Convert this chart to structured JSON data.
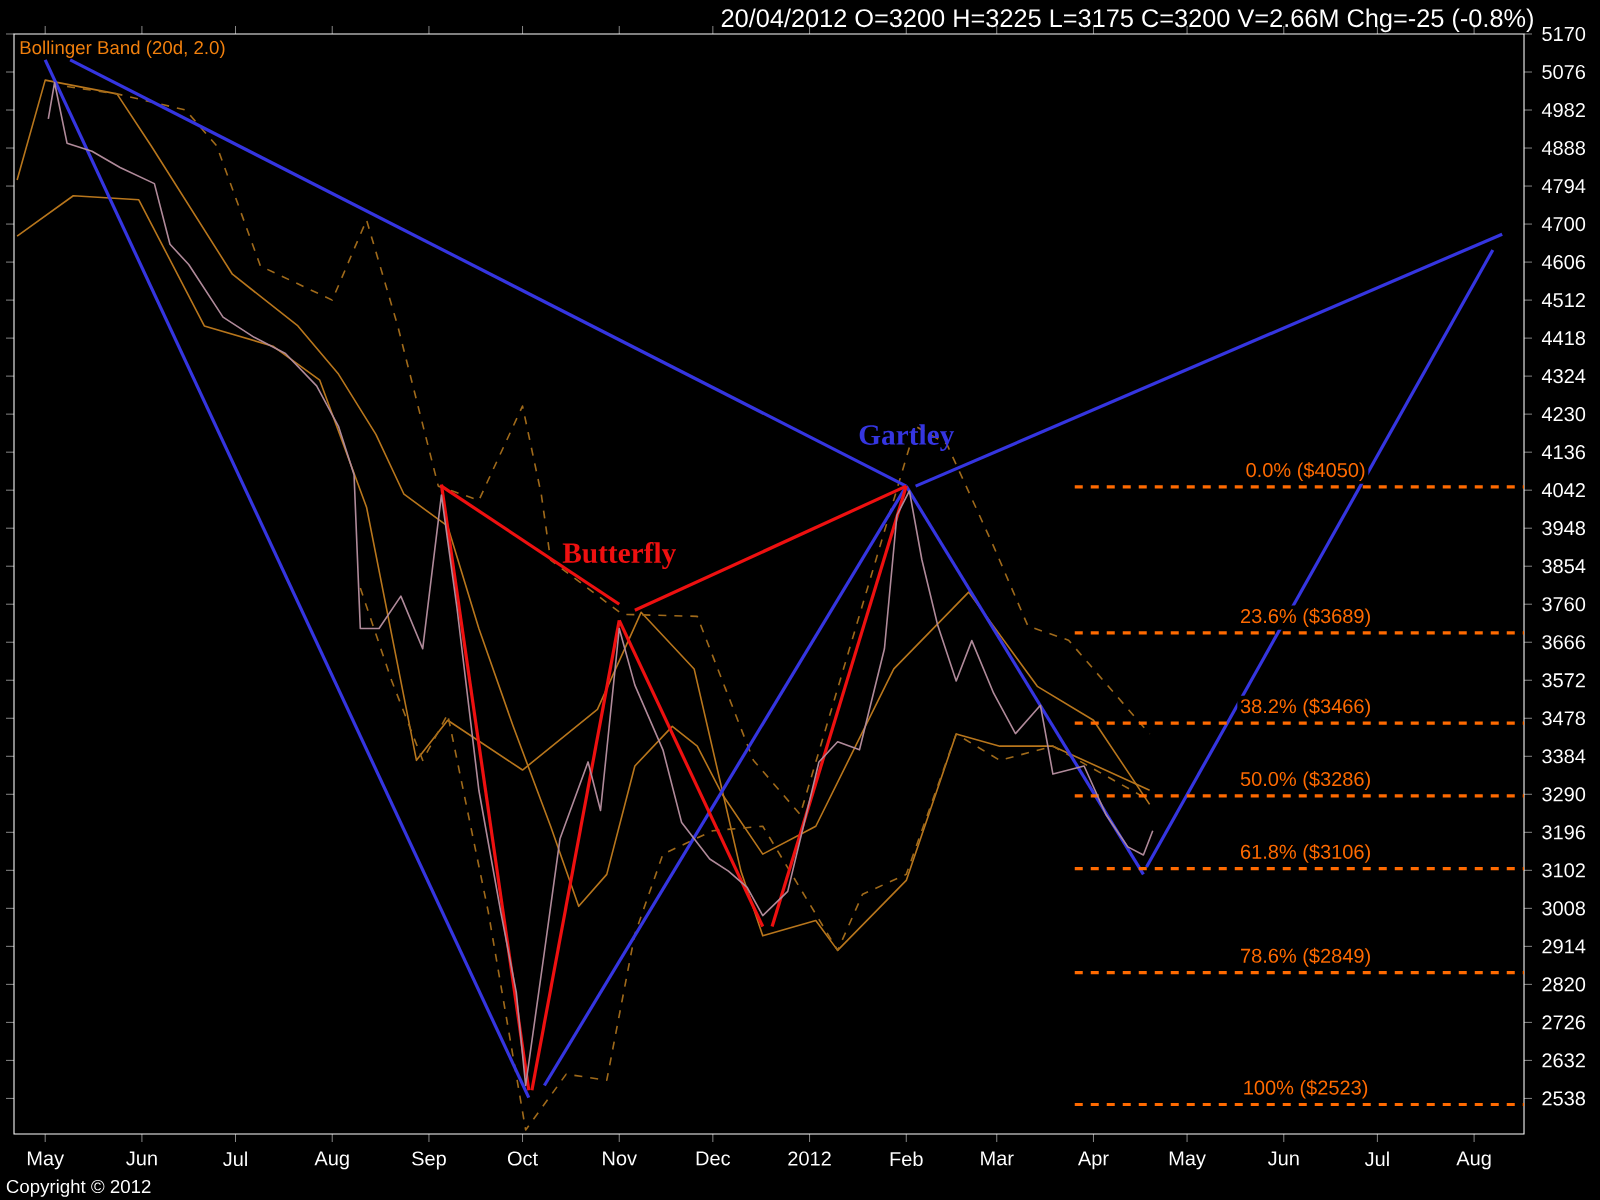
{
  "chart_data": {
    "type": "line",
    "subtitle": "20/04/2012    O=3200    H=3225    L=3175    C=3200    V=2.66M    Chg=-25 (-0.8%)",
    "xlim": [
      "2011-04-21",
      "2012-08-17"
    ],
    "ylim": [
      2450,
      5170
    ],
    "xticks": [
      {
        "value": "2011-05-01",
        "label": "May"
      },
      {
        "value": "2011-06-01",
        "label": "Jun"
      },
      {
        "value": "2011-07-01",
        "label": "Jul"
      },
      {
        "value": "2011-08-01",
        "label": "Aug"
      },
      {
        "value": "2011-09-01",
        "label": "Sep"
      },
      {
        "value": "2011-10-01",
        "label": "Oct"
      },
      {
        "value": "2011-11-01",
        "label": "Nov"
      },
      {
        "value": "2011-12-01",
        "label": "Dec"
      },
      {
        "value": "2012-01-01",
        "label": "2012"
      },
      {
        "value": "2012-02-01",
        "label": "Feb"
      },
      {
        "value": "2012-03-01",
        "label": "Mar"
      },
      {
        "value": "2012-04-01",
        "label": "Apr"
      },
      {
        "value": "2012-05-01",
        "label": "May"
      },
      {
        "value": "2012-06-01",
        "label": "Jun"
      },
      {
        "value": "2012-07-01",
        "label": "Jul"
      },
      {
        "value": "2012-08-01",
        "label": "Aug"
      }
    ],
    "yticks": [
      2538,
      2632,
      2726,
      2820,
      2914,
      3008,
      3102,
      3196,
      3290,
      3384,
      3478,
      3572,
      3666,
      3760,
      3854,
      3948,
      4042,
      4136,
      4230,
      4324,
      4418,
      4512,
      4606,
      4700,
      4794,
      4888,
      4982,
      5076,
      5170
    ],
    "annotations": [
      "Bollinger Band (20d, 2.0)",
      "Copyright © 2012",
      {
        "text": "0.0%   ($4050)",
        "x": "2012-06-08",
        "y": 4050
      },
      {
        "text": "23.6%   ($3689)",
        "x": "2012-06-08",
        "y": 3689
      },
      {
        "text": "38.2%   ($3466)",
        "x": "2012-06-08",
        "y": 3466
      },
      {
        "text": "50.0%   ($3286)",
        "x": "2012-06-08",
        "y": 3286
      },
      {
        "text": "61.8%   ($3106)",
        "x": "2012-06-08",
        "y": 3106
      },
      {
        "text": "78.6%   ($2849)",
        "x": "2012-06-08",
        "y": 2849
      },
      {
        "text": "100%   ($2523)",
        "x": "2012-06-08",
        "y": 2523
      }
    ],
    "series": [
      {
        "color": "#b08a9a",
        "x": [
          "2011-05-02",
          "2011-05-04",
          "2011-05-08",
          "2011-05-16",
          "2011-05-25",
          "2011-06-05",
          "2011-06-10",
          "2011-06-16",
          "2011-06-27",
          "2011-07-07",
          "2011-07-17",
          "2011-07-27",
          "2011-08-03",
          "2011-08-08",
          "2011-08-10",
          "2011-08-16",
          "2011-08-23",
          "2011-08-30",
          "2011-09-05",
          "2011-09-10",
          "2011-09-17",
          "2011-09-24",
          "2011-09-29",
          "2011-10-02",
          "2011-10-08",
          "2011-10-13",
          "2011-10-22",
          "2011-10-26",
          "2011-11-01",
          "2011-11-06",
          "2011-11-15",
          "2011-11-21",
          "2011-11-30",
          "2011-12-06",
          "2011-12-12",
          "2011-12-17",
          "2011-12-25",
          "2011-12-30",
          "2012-01-04",
          "2012-01-10",
          "2012-01-17",
          "2012-01-25",
          "2012-01-29",
          "2012-02-02",
          "2012-02-06",
          "2012-02-11",
          "2012-02-17",
          "2012-02-22",
          "2012-02-29",
          "2012-03-07",
          "2012-03-15",
          "2012-03-19",
          "2012-03-29",
          "2012-04-05",
          "2012-04-12",
          "2012-04-17",
          "2012-04-20"
        ],
        "values": [
          4960,
          5050,
          4900,
          4880,
          4840,
          4800,
          4650,
          4600,
          4470,
          4420,
          4380,
          4300,
          4200,
          4080,
          3700,
          3700,
          3780,
          3650,
          4030,
          3750,
          3300,
          3000,
          2800,
          2570,
          2900,
          3180,
          3370,
          3250,
          3700,
          3560,
          3400,
          3220,
          3130,
          3100,
          3060,
          2990,
          3050,
          3210,
          3370,
          3420,
          3400,
          3650,
          3980,
          4040,
          3870,
          3710,
          3570,
          3670,
          3540,
          3440,
          3510,
          3340,
          3360,
          3240,
          3160,
          3140,
          3200
        ]
      },
      {
        "color": "#b8761c",
        "x": [
          "2011-04-22",
          "2011-05-01",
          "2011-05-24",
          "2011-06-04",
          "2011-06-30",
          "2011-07-21",
          "2011-08-03",
          "2011-08-15",
          "2011-08-24",
          "2011-09-07",
          "2011-09-17",
          "2011-09-28",
          "2011-10-10",
          "2011-10-19",
          "2011-10-28",
          "2011-11-06",
          "2011-11-18",
          "2011-11-26",
          "2011-12-04",
          "2011-12-17",
          "2012-01-03",
          "2012-01-28",
          "2012-02-21",
          "2012-03-14",
          "2012-04-01",
          "2012-04-19"
        ],
        "values": [
          4809,
          5056,
          5022,
          4893,
          4576,
          4448,
          4329,
          4180,
          4032,
          3953,
          3700,
          3458,
          3211,
          3013,
          3092,
          3360,
          3458,
          3409,
          3290,
          3142,
          3211,
          3600,
          3790,
          3557,
          3473,
          3265
        ]
      },
      {
        "color": "#b8761c",
        "x": [
          "2011-04-22",
          "2011-05-10",
          "2011-05-31",
          "2011-06-21",
          "2011-07-13",
          "2011-07-28",
          "2011-08-12",
          "2011-08-28",
          "2011-09-07",
          "2011-10-01",
          "2011-10-25",
          "2011-11-08",
          "2011-11-25",
          "2011-12-10",
          "2011-12-17",
          "2012-01-03",
          "2012-01-10",
          "2012-02-01",
          "2012-02-17",
          "2012-03-02",
          "2012-03-19",
          "2012-04-19"
        ],
        "values": [
          4670,
          4770,
          4760,
          4448,
          4398,
          4314,
          4000,
          3374,
          3473,
          3350,
          3500,
          3740,
          3600,
          3100,
          2940,
          2978,
          2904,
          3077,
          3439,
          3409,
          3409,
          3300
        ]
      },
      {
        "color": "#a06a1a",
        "line_style": "dashed",
        "x": [
          "2011-05-08",
          "2011-05-24",
          "2011-06-15",
          "2011-06-25",
          "2011-07-09",
          "2011-08-01",
          "2011-08-12",
          "2011-08-22",
          "2011-09-04",
          "2011-09-17",
          "2011-10-01",
          "2011-10-07",
          "2011-10-10",
          "2011-11-02",
          "2011-11-26",
          "2011-12-14",
          "2011-12-29",
          "2012-02-04",
          "2012-02-14",
          "2012-02-29",
          "2012-03-11",
          "2012-03-24",
          "2012-04-19"
        ],
        "values": [
          5040,
          5022,
          4982,
          4893,
          4596,
          4512,
          4710,
          4448,
          4052,
          4017,
          4250,
          4032,
          3869,
          3735,
          3730,
          3374,
          3240,
          4200,
          4156,
          3903,
          3706,
          3671,
          3439
        ]
      },
      {
        "color": "#a06a1a",
        "line_style": "dashed",
        "x": [
          "2011-08-10",
          "2011-08-20",
          "2011-08-30",
          "2011-09-07",
          "2011-09-20",
          "2011-10-02",
          "2011-10-15",
          "2011-10-28",
          "2011-11-06",
          "2011-11-15",
          "2011-12-01",
          "2011-12-17",
          "2012-01-10",
          "2012-01-18",
          "2012-02-01",
          "2012-02-17",
          "2012-03-02",
          "2012-03-19",
          "2012-04-19"
        ],
        "values": [
          3800,
          3572,
          3374,
          3488,
          3000,
          2460,
          2598,
          2583,
          2944,
          3142,
          3200,
          3211,
          2904,
          3043,
          3092,
          3439,
          3374,
          3409,
          3275
        ]
      },
      {
        "color": "#3535e0",
        "x": [
          "2011-05-01",
          "2011-10-03"
        ],
        "values": [
          5106,
          2540
        ]
      },
      {
        "color": "#3535e0",
        "x": [
          "2011-05-09",
          "2012-02-01"
        ],
        "values": [
          5106,
          4052
        ]
      },
      {
        "color": "#3535e0",
        "name": "Gartley",
        "x": [
          "2011-10-08",
          "2012-02-01"
        ],
        "values": [
          2570,
          4052
        ]
      },
      {
        "color": "#3535e0",
        "x": [
          "2012-02-04",
          "2012-08-10"
        ],
        "values": [
          4052,
          4675
        ]
      },
      {
        "color": "#3535e0",
        "x": [
          "2012-02-01",
          "2012-04-17"
        ],
        "values": [
          4052,
          3092
        ]
      },
      {
        "color": "#3535e0",
        "x": [
          "2012-04-18",
          "2012-08-07"
        ],
        "values": [
          3110,
          4636
        ]
      },
      {
        "color": "#ee1010",
        "x": [
          "2011-09-05",
          "2011-10-03"
        ],
        "values": [
          4056,
          2558
        ]
      },
      {
        "color": "#ee1010",
        "x": [
          "2011-10-04",
          "2011-11-01"
        ],
        "values": [
          2558,
          3720
        ]
      },
      {
        "color": "#ee1010",
        "x": [
          "2011-11-01",
          "2011-12-17"
        ],
        "values": [
          3720,
          2963
        ]
      },
      {
        "color": "#ee1010",
        "x": [
          "2011-12-20",
          "2012-02-01"
        ],
        "values": [
          2963,
          4052
        ]
      },
      {
        "color": "#ee1010",
        "name": "Butterfly",
        "x": [
          "2011-09-05",
          "2011-11-01"
        ],
        "values": [
          4052,
          3760
        ]
      },
      {
        "color": "#ee1010",
        "x": [
          "2011-11-06",
          "2012-02-01"
        ],
        "values": [
          3745,
          4052
        ]
      },
      {
        "color": "#ff6a00",
        "line_style": "dashed",
        "x": [
          "2012-03-26",
          "2012-08-17"
        ],
        "values": [
          4050,
          4050
        ]
      },
      {
        "color": "#ff6a00",
        "line_style": "dashed",
        "x": [
          "2012-03-26",
          "2012-08-17"
        ],
        "values": [
          3689,
          3689
        ]
      },
      {
        "color": "#ff6a00",
        "line_style": "dashed",
        "x": [
          "2012-03-26",
          "2012-08-17"
        ],
        "values": [
          3466,
          3466
        ]
      },
      {
        "color": "#ff6a00",
        "line_style": "dashed",
        "x": [
          "2012-03-26",
          "2012-08-17"
        ],
        "values": [
          3286,
          3286
        ]
      },
      {
        "color": "#ff6a00",
        "line_style": "dashed",
        "x": [
          "2012-03-26",
          "2012-08-17"
        ],
        "values": [
          3106,
          3106
        ]
      },
      {
        "color": "#ff6a00",
        "line_style": "dashed",
        "x": [
          "2012-03-26",
          "2012-08-17"
        ],
        "values": [
          2849,
          2849
        ]
      },
      {
        "color": "#ff6a00",
        "line_style": "dashed",
        "x": [
          "2012-03-26",
          "2012-08-17"
        ],
        "values": [
          2523,
          2523
        ]
      }
    ]
  }
}
